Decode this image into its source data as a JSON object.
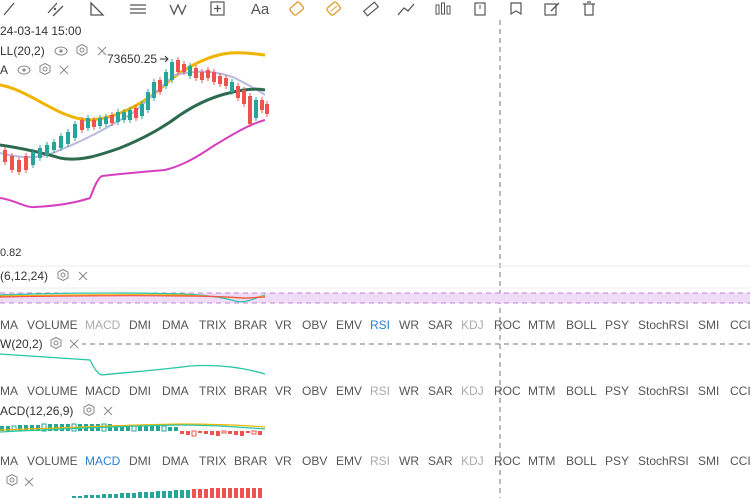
{
  "toolbar": {
    "items": [
      "line-tool-icon",
      "parallel-channel-icon",
      "triangle-tool-icon",
      "fib-lines-icon",
      "pattern-icon",
      "add-plus-icon",
      "text-tool-icon",
      "brush-icon",
      "highlighter-icon",
      "ruler-icon",
      "measure-icon",
      "indicator-icon",
      "bookmark-icon",
      "flag-icon",
      "note-edit-icon",
      "delete-icon"
    ],
    "text_label": "Aa"
  },
  "main_chart": {
    "date_label": "24-03-14 15:00",
    "boll_label": "LL(20,2)",
    "ma_label": "A",
    "high_label": "73650.25",
    "low_label": "0.82"
  },
  "rsi_pane": {
    "label": "(6,12,24)"
  },
  "indicator_tabs": [
    "MA",
    "VOLUME",
    "MACD",
    "DMI",
    "DMA",
    "TRIX",
    "BRAR",
    "VR",
    "OBV",
    "EMV",
    "RSI",
    "WR",
    "SAR",
    "KDJ",
    "ROC",
    "MTM",
    "BOLL",
    "PSY",
    "StochRSI",
    "SMI",
    "CCI"
  ],
  "tabs_row1": {
    "active": "RSI",
    "muted": [
      "MACD",
      "KDJ"
    ]
  },
  "tabs_row2": {
    "active": "",
    "muted": [
      "RSI",
      "KDJ"
    ]
  },
  "tabs_row3": {
    "active": "MACD",
    "muted": [
      "RSI",
      "KDJ"
    ]
  },
  "bbw_pane": {
    "label": "W(20,2)"
  },
  "macd_pane": {
    "label": "ACD(12,26,9)"
  },
  "colors": {
    "up": "#26a69a",
    "down": "#ef5350",
    "boll_upper": "#f0b400",
    "boll_lower": "#d63fc0",
    "boll_mid": "#2e6b4e",
    "ma": "#b8b8e0",
    "active_tab": "#2a7fd4"
  }
}
